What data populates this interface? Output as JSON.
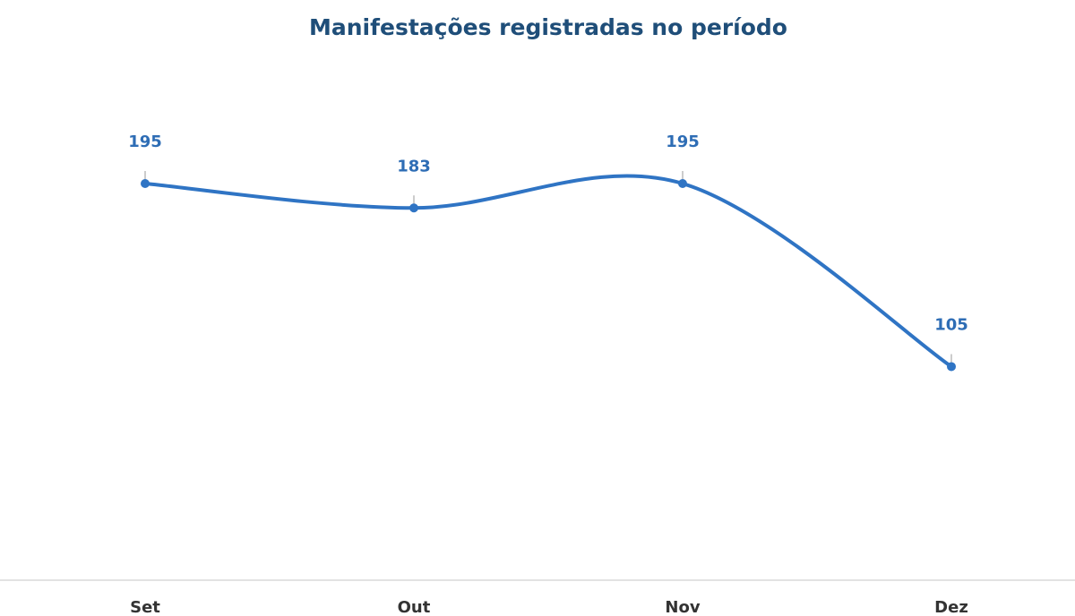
{
  "chart_data": {
    "type": "line",
    "title": "Manifestações registradas no período",
    "categories": [
      "Set",
      "Out",
      "Nov",
      "Dez"
    ],
    "series": [
      {
        "name": "Manifestações",
        "color": "#2f74c4",
        "values": [
          195,
          183,
          195,
          105
        ]
      }
    ],
    "smooth": true
  }
}
